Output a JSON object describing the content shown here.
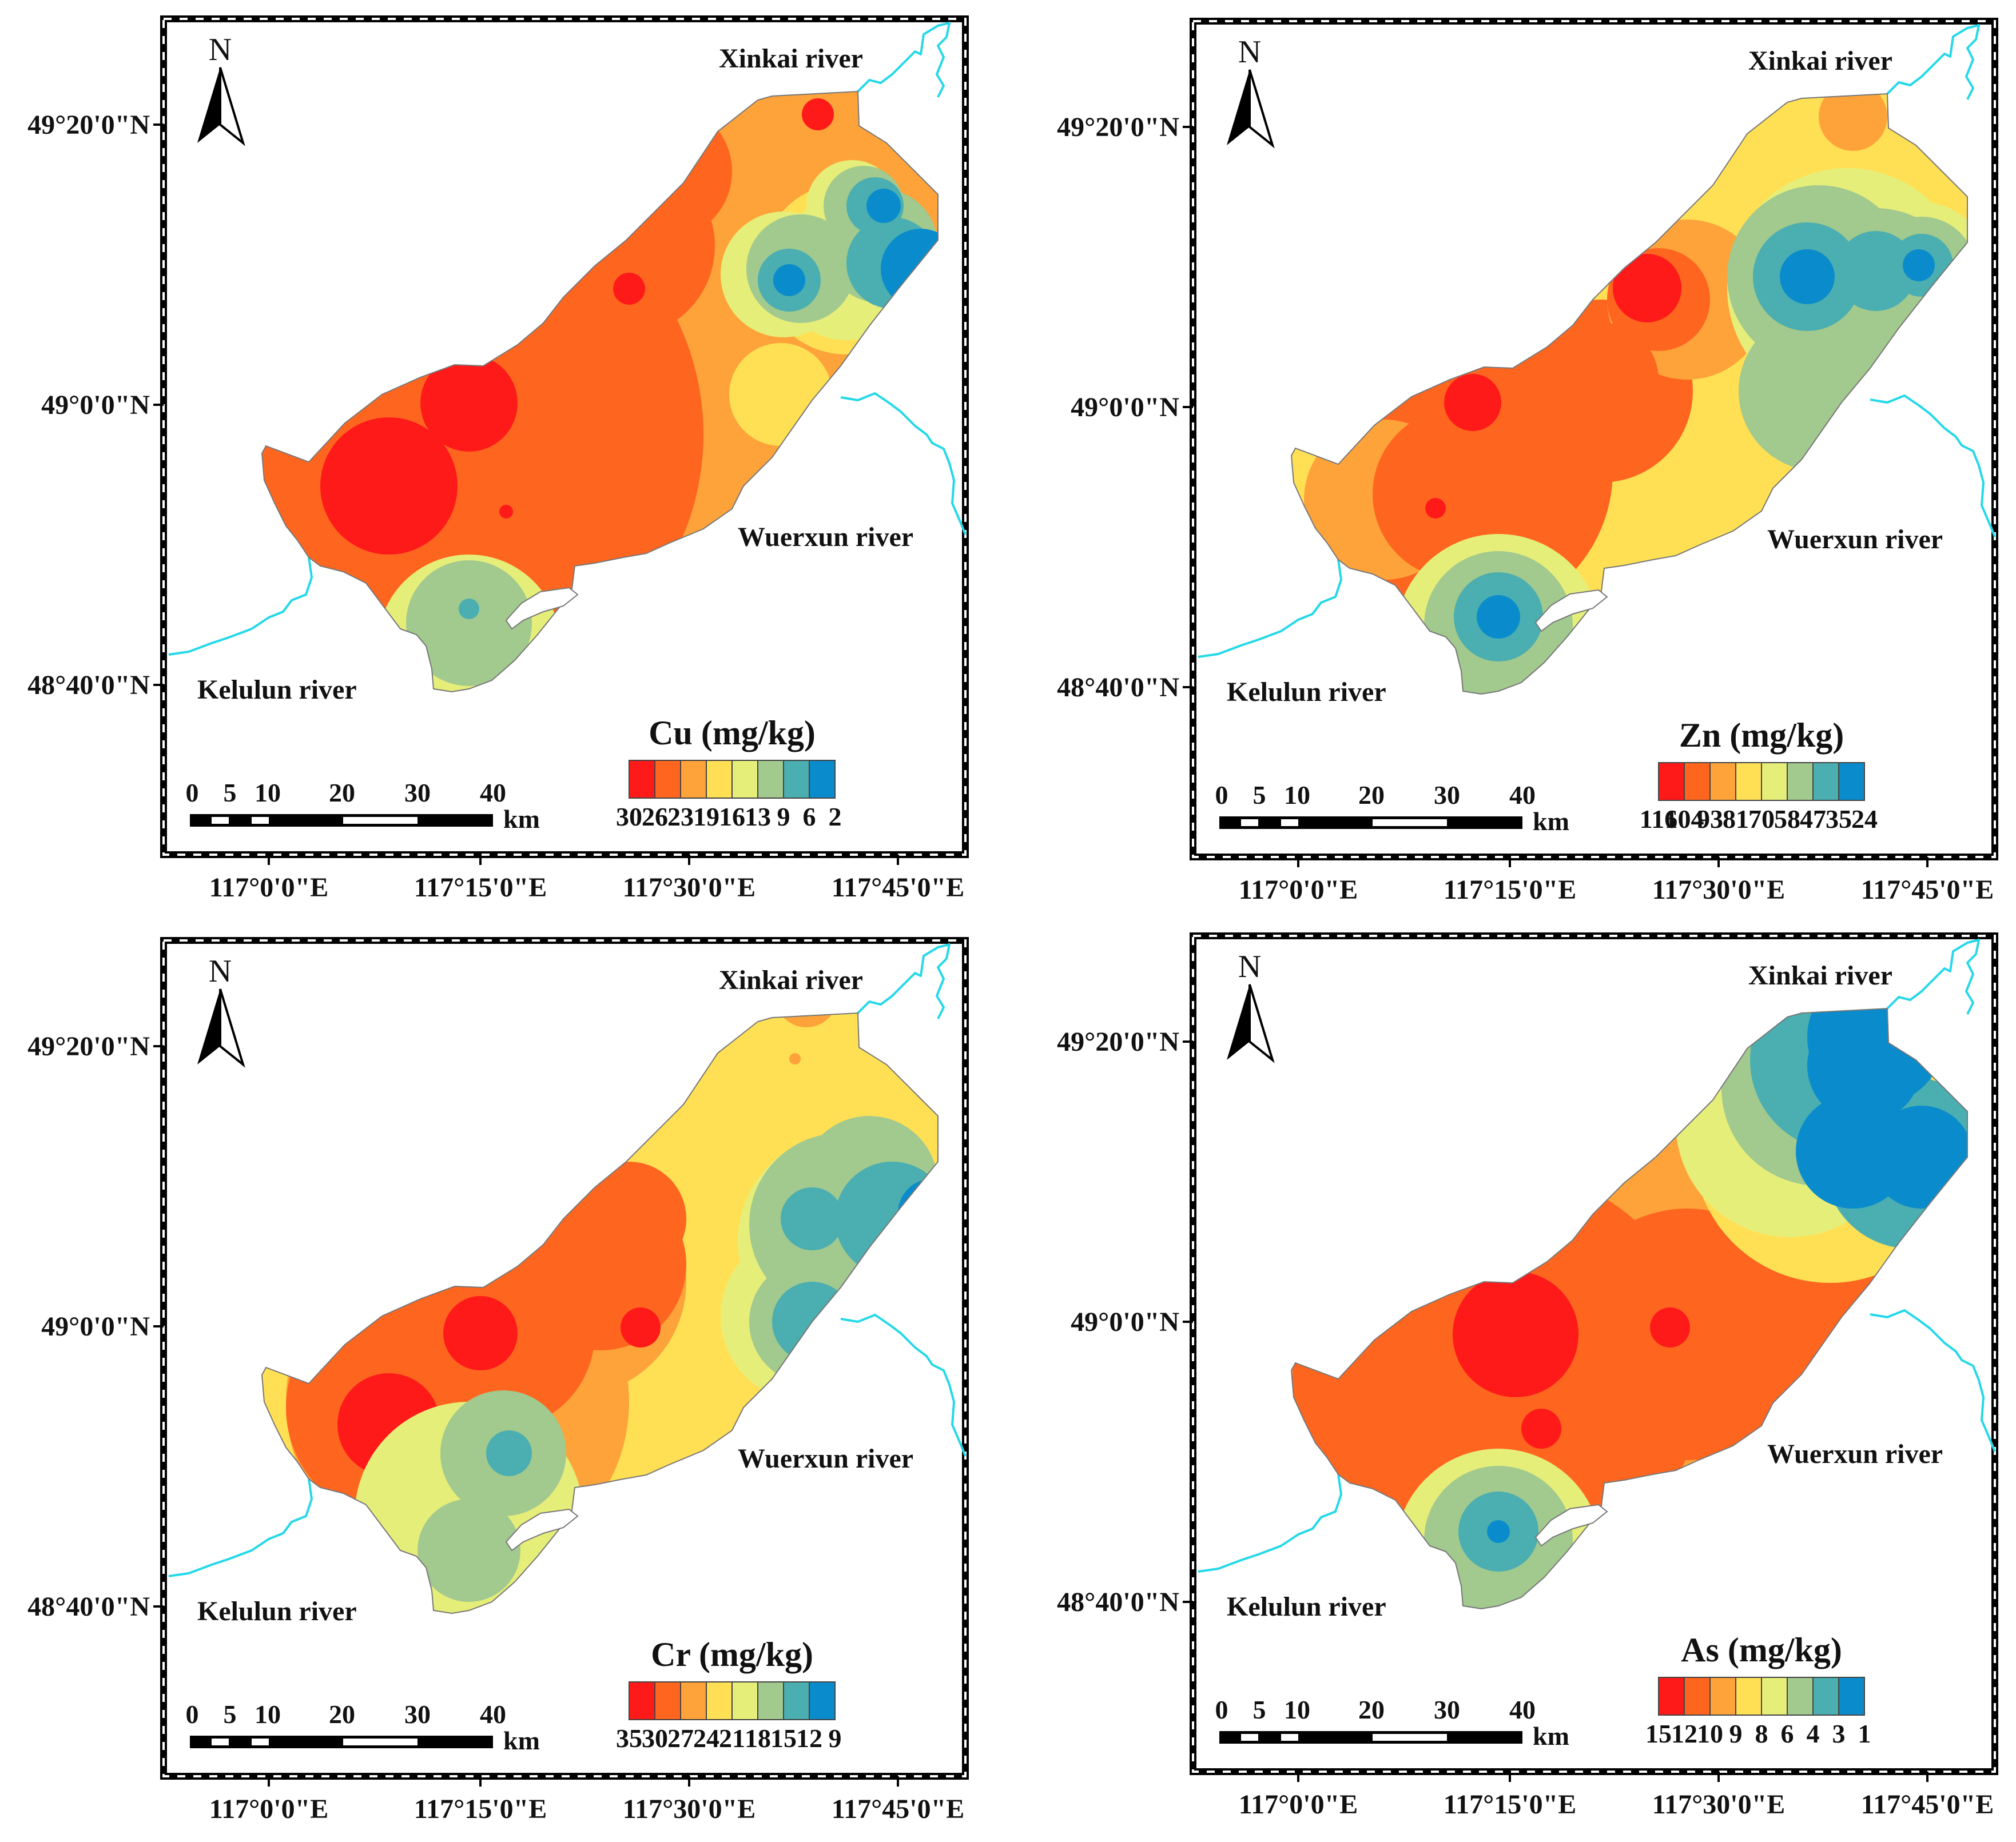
{
  "figure": {
    "latitude_labels": [
      "49°20'0\"N",
      "49°0'0\"N",
      "48°40'0\"N"
    ],
    "longitude_labels": [
      "117°0'0\"E",
      "117°15'0\"E",
      "117°30'0\"E",
      "117°45'0\"E"
    ],
    "north_label": "N",
    "scale_bar": {
      "ticks": [
        "0",
        "5",
        "10",
        "20",
        "30",
        "40"
      ],
      "unit": "km"
    },
    "rivers": {
      "xinkai": "Xinkai river",
      "wuerxun": "Wuerxun river",
      "kelulun": "Kelulun river"
    },
    "legend_colors": [
      "#ff1a1a",
      "#fe6620",
      "#fda33a",
      "#ffe055",
      "#e6ee7a",
      "#a2c98e",
      "#4baeb0",
      "#0a8ccc"
    ],
    "river_color": "#25d8e8"
  },
  "panels": [
    {
      "legend_title": "Cu (mg/kg)",
      "breaks": [
        "30",
        "26",
        "23",
        "19",
        "16",
        "13",
        "9",
        "6",
        "2"
      ],
      "break_values": [
        30,
        26,
        23,
        19,
        16,
        13,
        9,
        6,
        2
      ]
    },
    {
      "legend_title": "Zn (mg/kg)",
      "breaks": [
        "116",
        "104",
        "93",
        "81",
        "70",
        "58",
        "47",
        "35",
        "24"
      ],
      "break_values": [
        116,
        104,
        93,
        81,
        70,
        58,
        47,
        35,
        24
      ]
    },
    {
      "legend_title": "Cr (mg/kg)",
      "breaks": [
        "35",
        "30",
        "27",
        "24",
        "21",
        "18",
        "15",
        "12",
        "9"
      ],
      "break_values": [
        35,
        30,
        27,
        24,
        21,
        18,
        15,
        12,
        9
      ]
    },
    {
      "legend_title": "As (mg/kg)",
      "breaks": [
        "15",
        "12",
        "10",
        "9",
        "8",
        "6",
        "4",
        "3",
        "1"
      ],
      "break_values": [
        15,
        12,
        10,
        9,
        8,
        6,
        4,
        3,
        1
      ]
    }
  ]
}
